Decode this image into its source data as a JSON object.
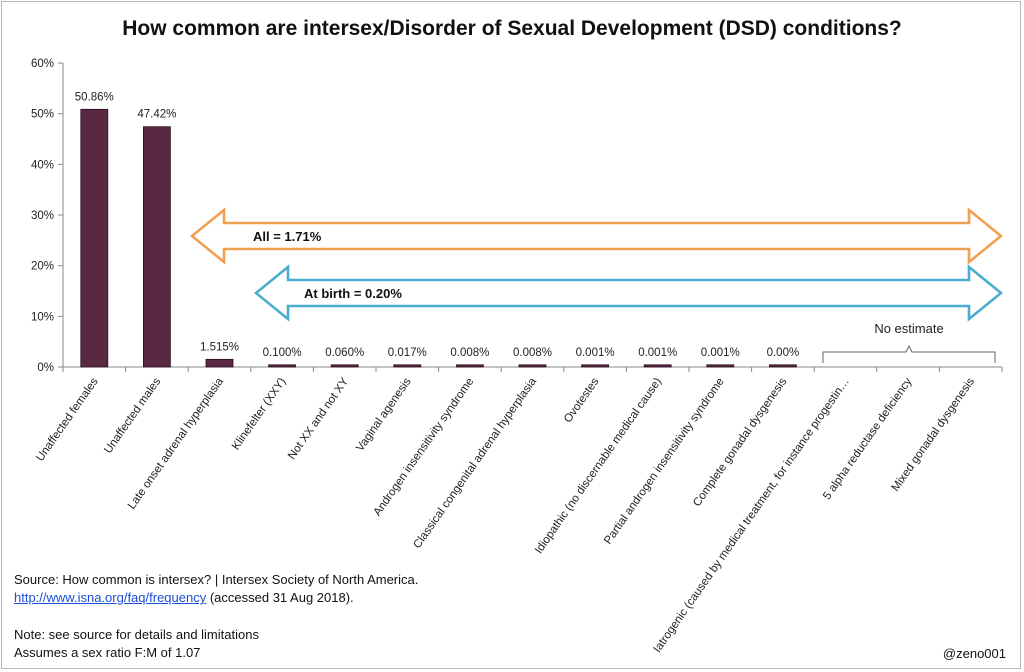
{
  "title": "How common are intersex/Disorder of Sexual Development (DSD) conditions?",
  "chart_data": {
    "type": "bar",
    "yticks": [
      "0%",
      "10%",
      "20%",
      "30%",
      "40%",
      "50%",
      "60%"
    ],
    "ylim": [
      0,
      60
    ],
    "bar_color": "#5a2840",
    "categories": [
      "Unaffected females",
      "Unaffected males",
      "Late onset adrenal hyperplasia",
      "Klinefelter (XXY)",
      "Not XX and not XY",
      "Vaginal agenesis",
      "Androgen insensitivity syndrome",
      "Classical congenital adrenal hyperplasia",
      "Ovotestes",
      "Idiopathic (no discernable medical cause)",
      "Partial androgen insensitivity syndrome",
      "Complete gonadal dysgenesis",
      "Iatrogenic (caused by medical treatment, for instance progestin…",
      "5 alpha reductase deficiency",
      "Mixed gonadal dysgenesis"
    ],
    "values": [
      50.86,
      47.42,
      1.515,
      0.1,
      0.06,
      0.017,
      0.008,
      0.008,
      0.001,
      0.001,
      0.001,
      0.0,
      null,
      null,
      null
    ],
    "data_labels": [
      "50.86%",
      "47.42%",
      "1.515%",
      "0.100%",
      "0.060%",
      "0.017%",
      "0.008%",
      "0.008%",
      "0.001%",
      "0.001%",
      "0.001%",
      "0.00%",
      "",
      "",
      ""
    ],
    "annotations": {
      "all": "All = 1.71%",
      "all_color": "#f0a050",
      "birth": "At birth = 0.20%",
      "birth_color": "#4aaed0",
      "no_estimate": "No estimate"
    }
  },
  "notes": {
    "source_line": "Source: How common is intersex? | Intersex Society of North America.",
    "source_link": "http://www.isna.org/faq/frequency",
    "source_accessed": " (accessed 31 Aug 2018).",
    "note_line": "Note: see source for details and limitations",
    "ratio_line": "Assumes a sex ratio F:M of 1.07"
  },
  "credit": "@zeno001"
}
